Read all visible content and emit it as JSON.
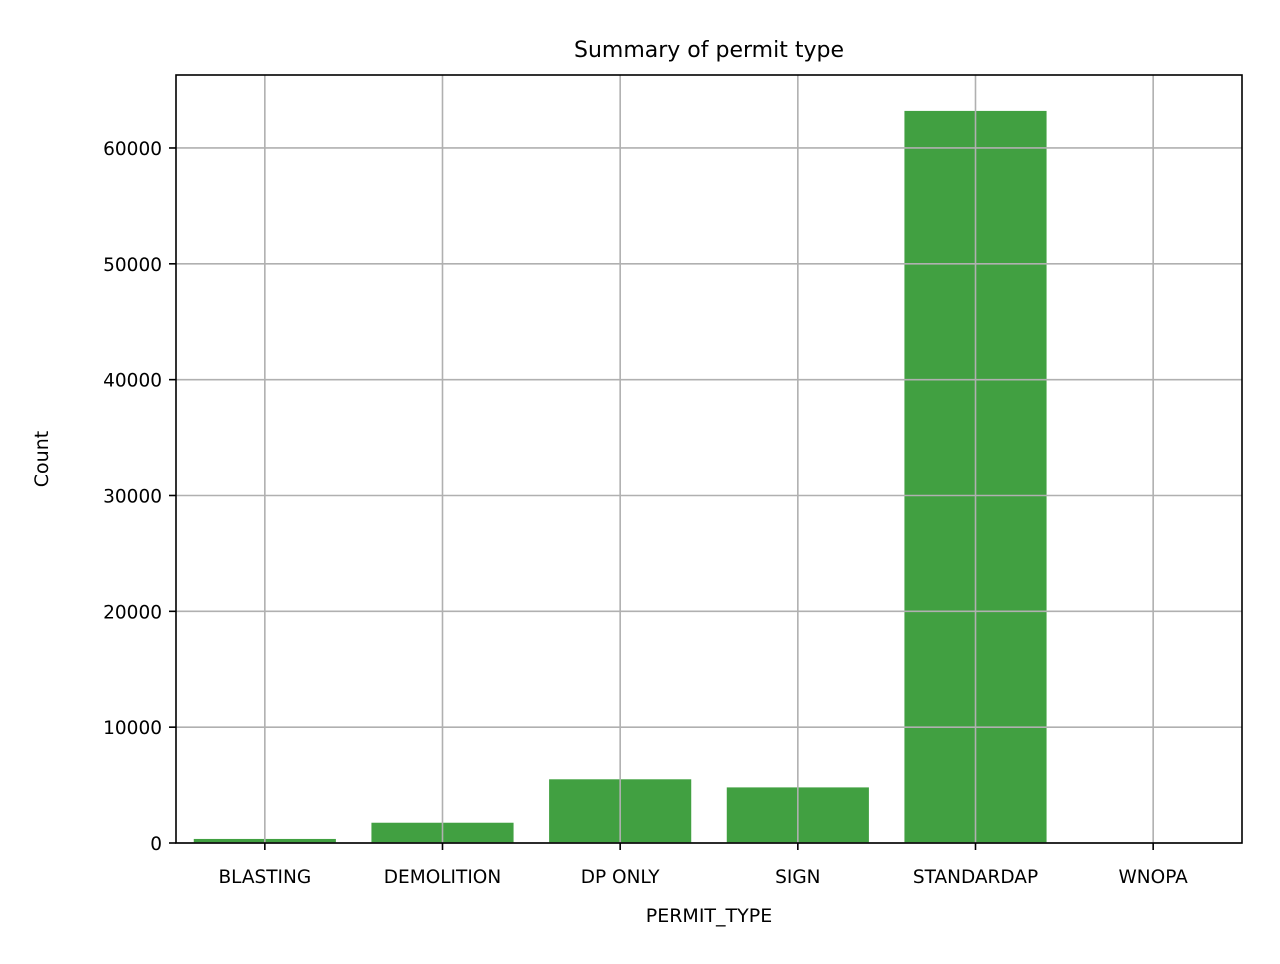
{
  "chart_data": {
    "type": "bar",
    "title": "Summary of permit type",
    "xlabel": "PERMIT_TYPE",
    "ylabel": "Count",
    "categories": [
      "BLASTING",
      "DEMOLITION",
      "DP ONLY",
      "SIGN",
      "STANDARDAP",
      "WNOPA"
    ],
    "values": [
      350,
      1750,
      5500,
      4800,
      63200,
      0
    ],
    "ylim": [
      0,
      66300
    ],
    "yticks": [
      0,
      10000,
      20000,
      30000,
      40000,
      50000,
      60000
    ],
    "grid": true,
    "bar_color": "#41a041",
    "legend": false
  }
}
